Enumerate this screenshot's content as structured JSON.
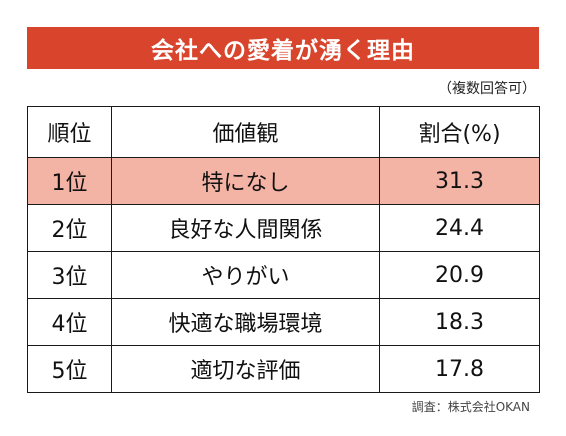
{
  "title": "会社への愛着が湧く理由",
  "note": "（複数回答可）",
  "source": "調査：株式会社OKAN",
  "colors": {
    "banner": "#d8442c",
    "highlight": "#f3b3a5"
  },
  "chart_data": {
    "type": "table",
    "columns": [
      "順位",
      "価値観",
      "割合(%)"
    ],
    "rows": [
      {
        "rank": "1位",
        "label": "特になし",
        "value": "31.3"
      },
      {
        "rank": "2位",
        "label": "良好な人間関係",
        "value": "24.4"
      },
      {
        "rank": "3位",
        "label": "やりがい",
        "value": "20.9"
      },
      {
        "rank": "4位",
        "label": "快適な職場環境",
        "value": "18.3"
      },
      {
        "rank": "5位",
        "label": "適切な評価",
        "value": "17.8"
      }
    ]
  }
}
